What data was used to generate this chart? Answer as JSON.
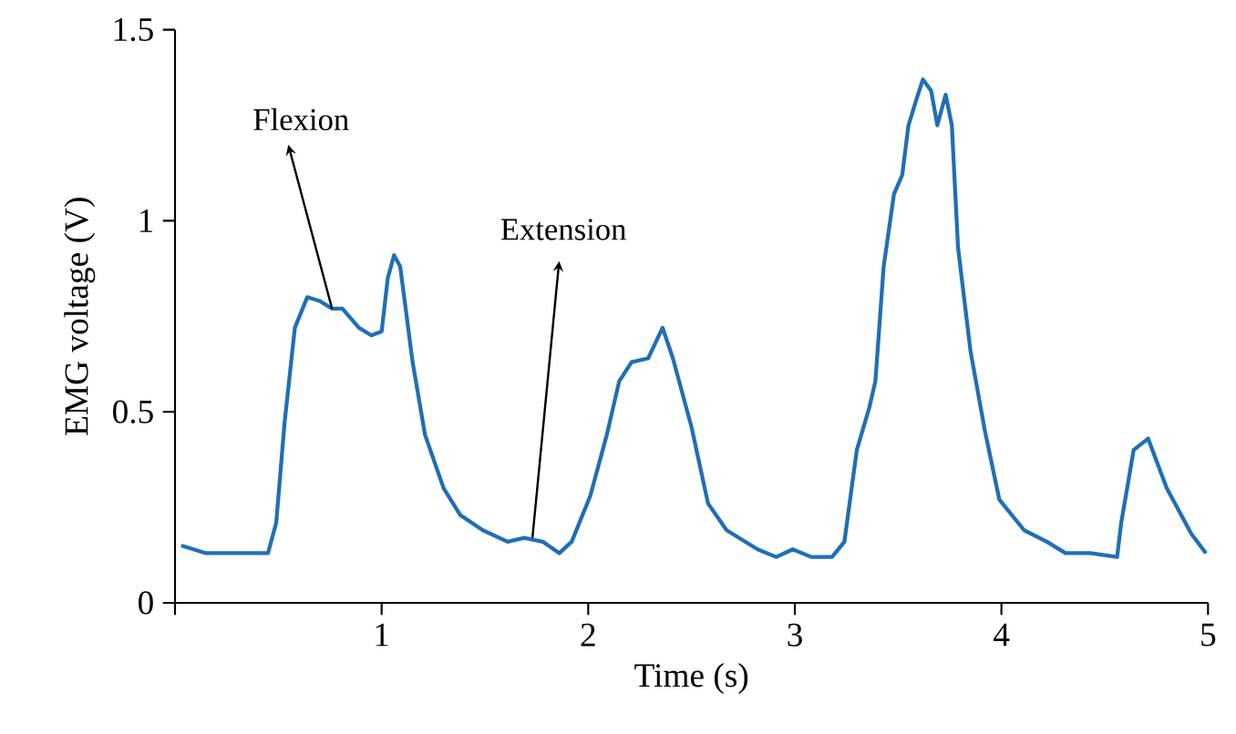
{
  "chart_data": {
    "type": "line",
    "xlabel": "Time (s)",
    "ylabel": "EMG voltage (V)",
    "xlim": [
      0,
      5
    ],
    "ylim": [
      0,
      1.5
    ],
    "xticks": [
      {
        "value": 0,
        "label": null
      },
      1,
      2,
      3,
      4,
      5
    ],
    "yticks": [
      0,
      0.5,
      1,
      1.5
    ],
    "x": [
      0.03,
      0.15,
      0.38,
      0.45,
      0.49,
      0.53,
      0.58,
      0.64,
      0.7,
      0.76,
      0.81,
      0.89,
      0.95,
      1.0,
      1.03,
      1.06,
      1.09,
      1.15,
      1.21,
      1.3,
      1.38,
      1.49,
      1.61,
      1.69,
      1.78,
      1.86,
      1.92,
      2.01,
      2.09,
      2.15,
      2.21,
      2.29,
      2.36,
      2.41,
      2.5,
      2.58,
      2.67,
      2.82,
      2.91,
      2.99,
      3.08,
      3.18,
      3.24,
      3.3,
      3.36,
      3.39,
      3.43,
      3.48,
      3.52,
      3.55,
      3.59,
      3.62,
      3.66,
      3.69,
      3.73,
      3.76,
      3.79,
      3.85,
      3.92,
      3.99,
      4.11,
      4.22,
      4.31,
      4.43,
      4.56,
      4.58,
      4.64,
      4.71,
      4.8,
      4.92,
      4.99
    ],
    "series": [
      {
        "color": "#1f6fb5",
        "values": [
          0.15,
          0.13,
          0.13,
          0.13,
          0.21,
          0.47,
          0.72,
          0.8,
          0.79,
          0.77,
          0.77,
          0.72,
          0.7,
          0.71,
          0.85,
          0.91,
          0.88,
          0.63,
          0.44,
          0.3,
          0.23,
          0.19,
          0.16,
          0.17,
          0.16,
          0.13,
          0.16,
          0.28,
          0.44,
          0.58,
          0.63,
          0.64,
          0.72,
          0.64,
          0.46,
          0.26,
          0.19,
          0.14,
          0.12,
          0.14,
          0.12,
          0.12,
          0.16,
          0.4,
          0.51,
          0.58,
          0.88,
          1.07,
          1.12,
          1.25,
          1.32,
          1.37,
          1.34,
          1.25,
          1.33,
          1.25,
          0.93,
          0.66,
          0.45,
          0.27,
          0.19,
          0.16,
          0.13,
          0.13,
          0.12,
          0.21,
          0.4,
          0.43,
          0.3,
          0.18,
          0.13
        ]
      }
    ],
    "annotations": [
      {
        "text": "Flexion",
        "x": 0.76,
        "y": 0.77
      },
      {
        "text": "Extension",
        "x": 1.73,
        "y": 0.17
      }
    ]
  }
}
